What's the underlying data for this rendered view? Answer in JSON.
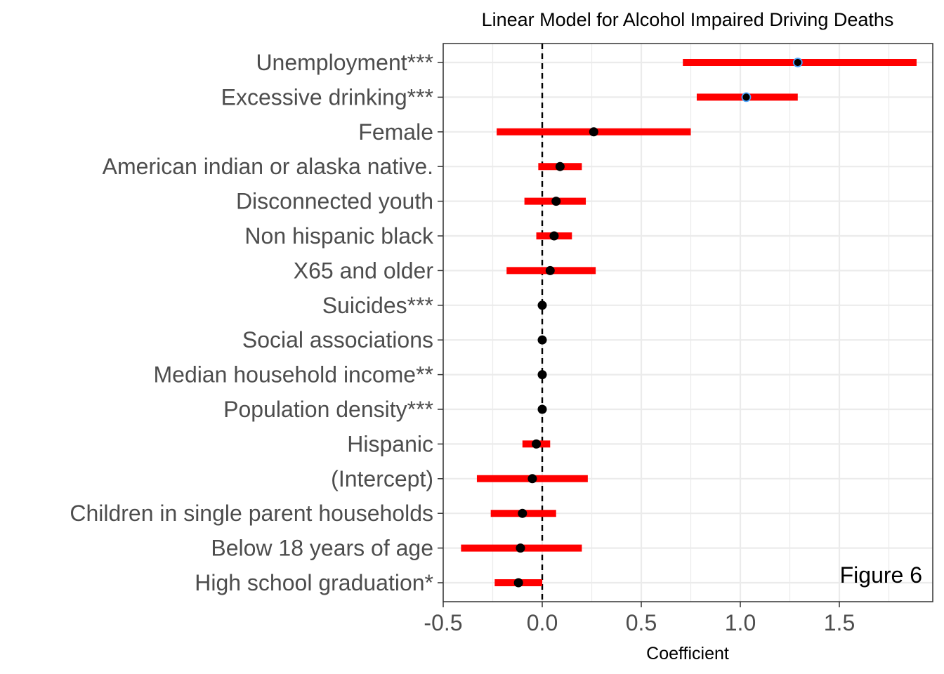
{
  "chart_data": {
    "type": "dot-whisker",
    "title": "Linear Model for Alcohol Impaired Driving Deaths",
    "xlabel": "Coefficient",
    "ylabel": "",
    "xlim": [
      -0.5,
      1.95
    ],
    "xticks": [
      -0.5,
      0.0,
      0.5,
      1.0,
      1.5
    ],
    "xtick_labels": [
      "-0.5",
      "0.0",
      "0.5",
      "1.0",
      "1.5"
    ],
    "reference_line": 0,
    "grid": true,
    "annotation": "Figure 6",
    "annotation_position": "bottom-right",
    "colors": {
      "interval": "#ff0000",
      "point": "#000000",
      "point_outline_highlight": "#4da6ff",
      "reference_line": "#000000",
      "grid": "#ebebeb"
    },
    "terms": [
      {
        "label": "Unemployment***",
        "estimate": 1.29,
        "low": 0.71,
        "high": 1.89,
        "highlight": true
      },
      {
        "label": "Excessive drinking***",
        "estimate": 1.03,
        "low": 0.78,
        "high": 1.29,
        "highlight": true
      },
      {
        "label": "Female",
        "estimate": 0.26,
        "low": -0.23,
        "high": 0.75
      },
      {
        "label": "American indian or alaska native.",
        "estimate": 0.09,
        "low": -0.02,
        "high": 0.2
      },
      {
        "label": "Disconnected youth",
        "estimate": 0.07,
        "low": -0.09,
        "high": 0.22
      },
      {
        "label": "Non hispanic black",
        "estimate": 0.06,
        "low": -0.03,
        "high": 0.15
      },
      {
        "label": "X65 and older",
        "estimate": 0.04,
        "low": -0.18,
        "high": 0.27
      },
      {
        "label": "Suicides***",
        "estimate": 0.0,
        "low": -0.005,
        "high": 0.005
      },
      {
        "label": "Social associations",
        "estimate": 0.0,
        "low": -0.004,
        "high": 0.004
      },
      {
        "label": "Median household income**",
        "estimate": 0.0,
        "low": -0.003,
        "high": 0.003
      },
      {
        "label": "Population density***",
        "estimate": 0.0,
        "low": -0.003,
        "high": 0.003
      },
      {
        "label": "Hispanic",
        "estimate": -0.03,
        "low": -0.1,
        "high": 0.04
      },
      {
        "label": "(Intercept)",
        "estimate": -0.05,
        "low": -0.33,
        "high": 0.23
      },
      {
        "label": "Children in single parent households",
        "estimate": -0.1,
        "low": -0.26,
        "high": 0.07
      },
      {
        "label": "Below 18 years of age",
        "estimate": -0.11,
        "low": -0.41,
        "high": 0.2
      },
      {
        "label": "High school graduation*",
        "estimate": -0.12,
        "low": -0.24,
        "high": 0.0
      }
    ]
  }
}
